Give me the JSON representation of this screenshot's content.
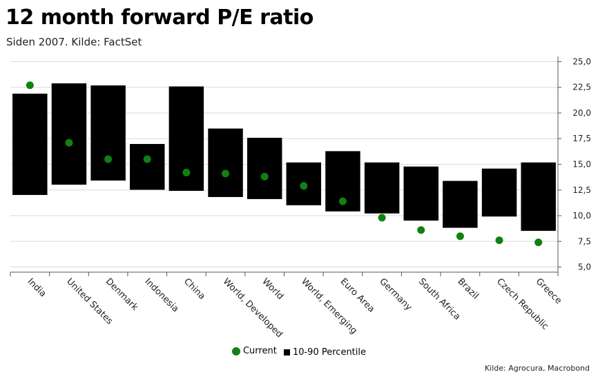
{
  "title": "12 month forward P/E ratio",
  "subtitle": "Siden 2007. Kilde: FactSet",
  "source": "Kilde: Agrocura, Macrobond",
  "colors": {
    "current": "#118011",
    "range": "#000000",
    "grid": "#d9d9d9"
  },
  "chart_data": {
    "type": "floating-bar-with-markers",
    "categories": [
      "India",
      "United States",
      "Denmark",
      "Indonesia",
      "China",
      "World, Developed",
      "World",
      "World, Emerging",
      "Euro Area",
      "Germany",
      "South Africa",
      "Brazil",
      "Czech Republic",
      "Greece"
    ],
    "series": [
      {
        "name": "Current",
        "values": [
          22.7,
          17.1,
          15.5,
          15.5,
          14.2,
          14.1,
          13.8,
          12.9,
          11.4,
          9.8,
          8.6,
          8.0,
          7.6,
          7.4
        ]
      },
      {
        "name": "10-90 Percentile",
        "low": [
          12.0,
          13.0,
          13.4,
          12.5,
          12.4,
          11.8,
          11.6,
          11.0,
          10.4,
          10.2,
          9.5,
          8.8,
          9.9,
          8.5
        ],
        "high": [
          21.9,
          22.9,
          22.7,
          17.0,
          22.6,
          18.5,
          17.6,
          15.2,
          16.3,
          15.2,
          14.8,
          13.4,
          14.6,
          15.2
        ]
      }
    ],
    "ylim": [
      4.5,
      25.5
    ],
    "yticks": [
      "5,0",
      "7,5",
      "10,0",
      "12,5",
      "15,0",
      "17,5",
      "20,0",
      "22,5",
      "25,0"
    ],
    "ytick_values": [
      5,
      7.5,
      10,
      12.5,
      15,
      17.5,
      20,
      22.5,
      25
    ],
    "y_axis_side": "right",
    "grid": true,
    "legend": "bottom-center"
  }
}
